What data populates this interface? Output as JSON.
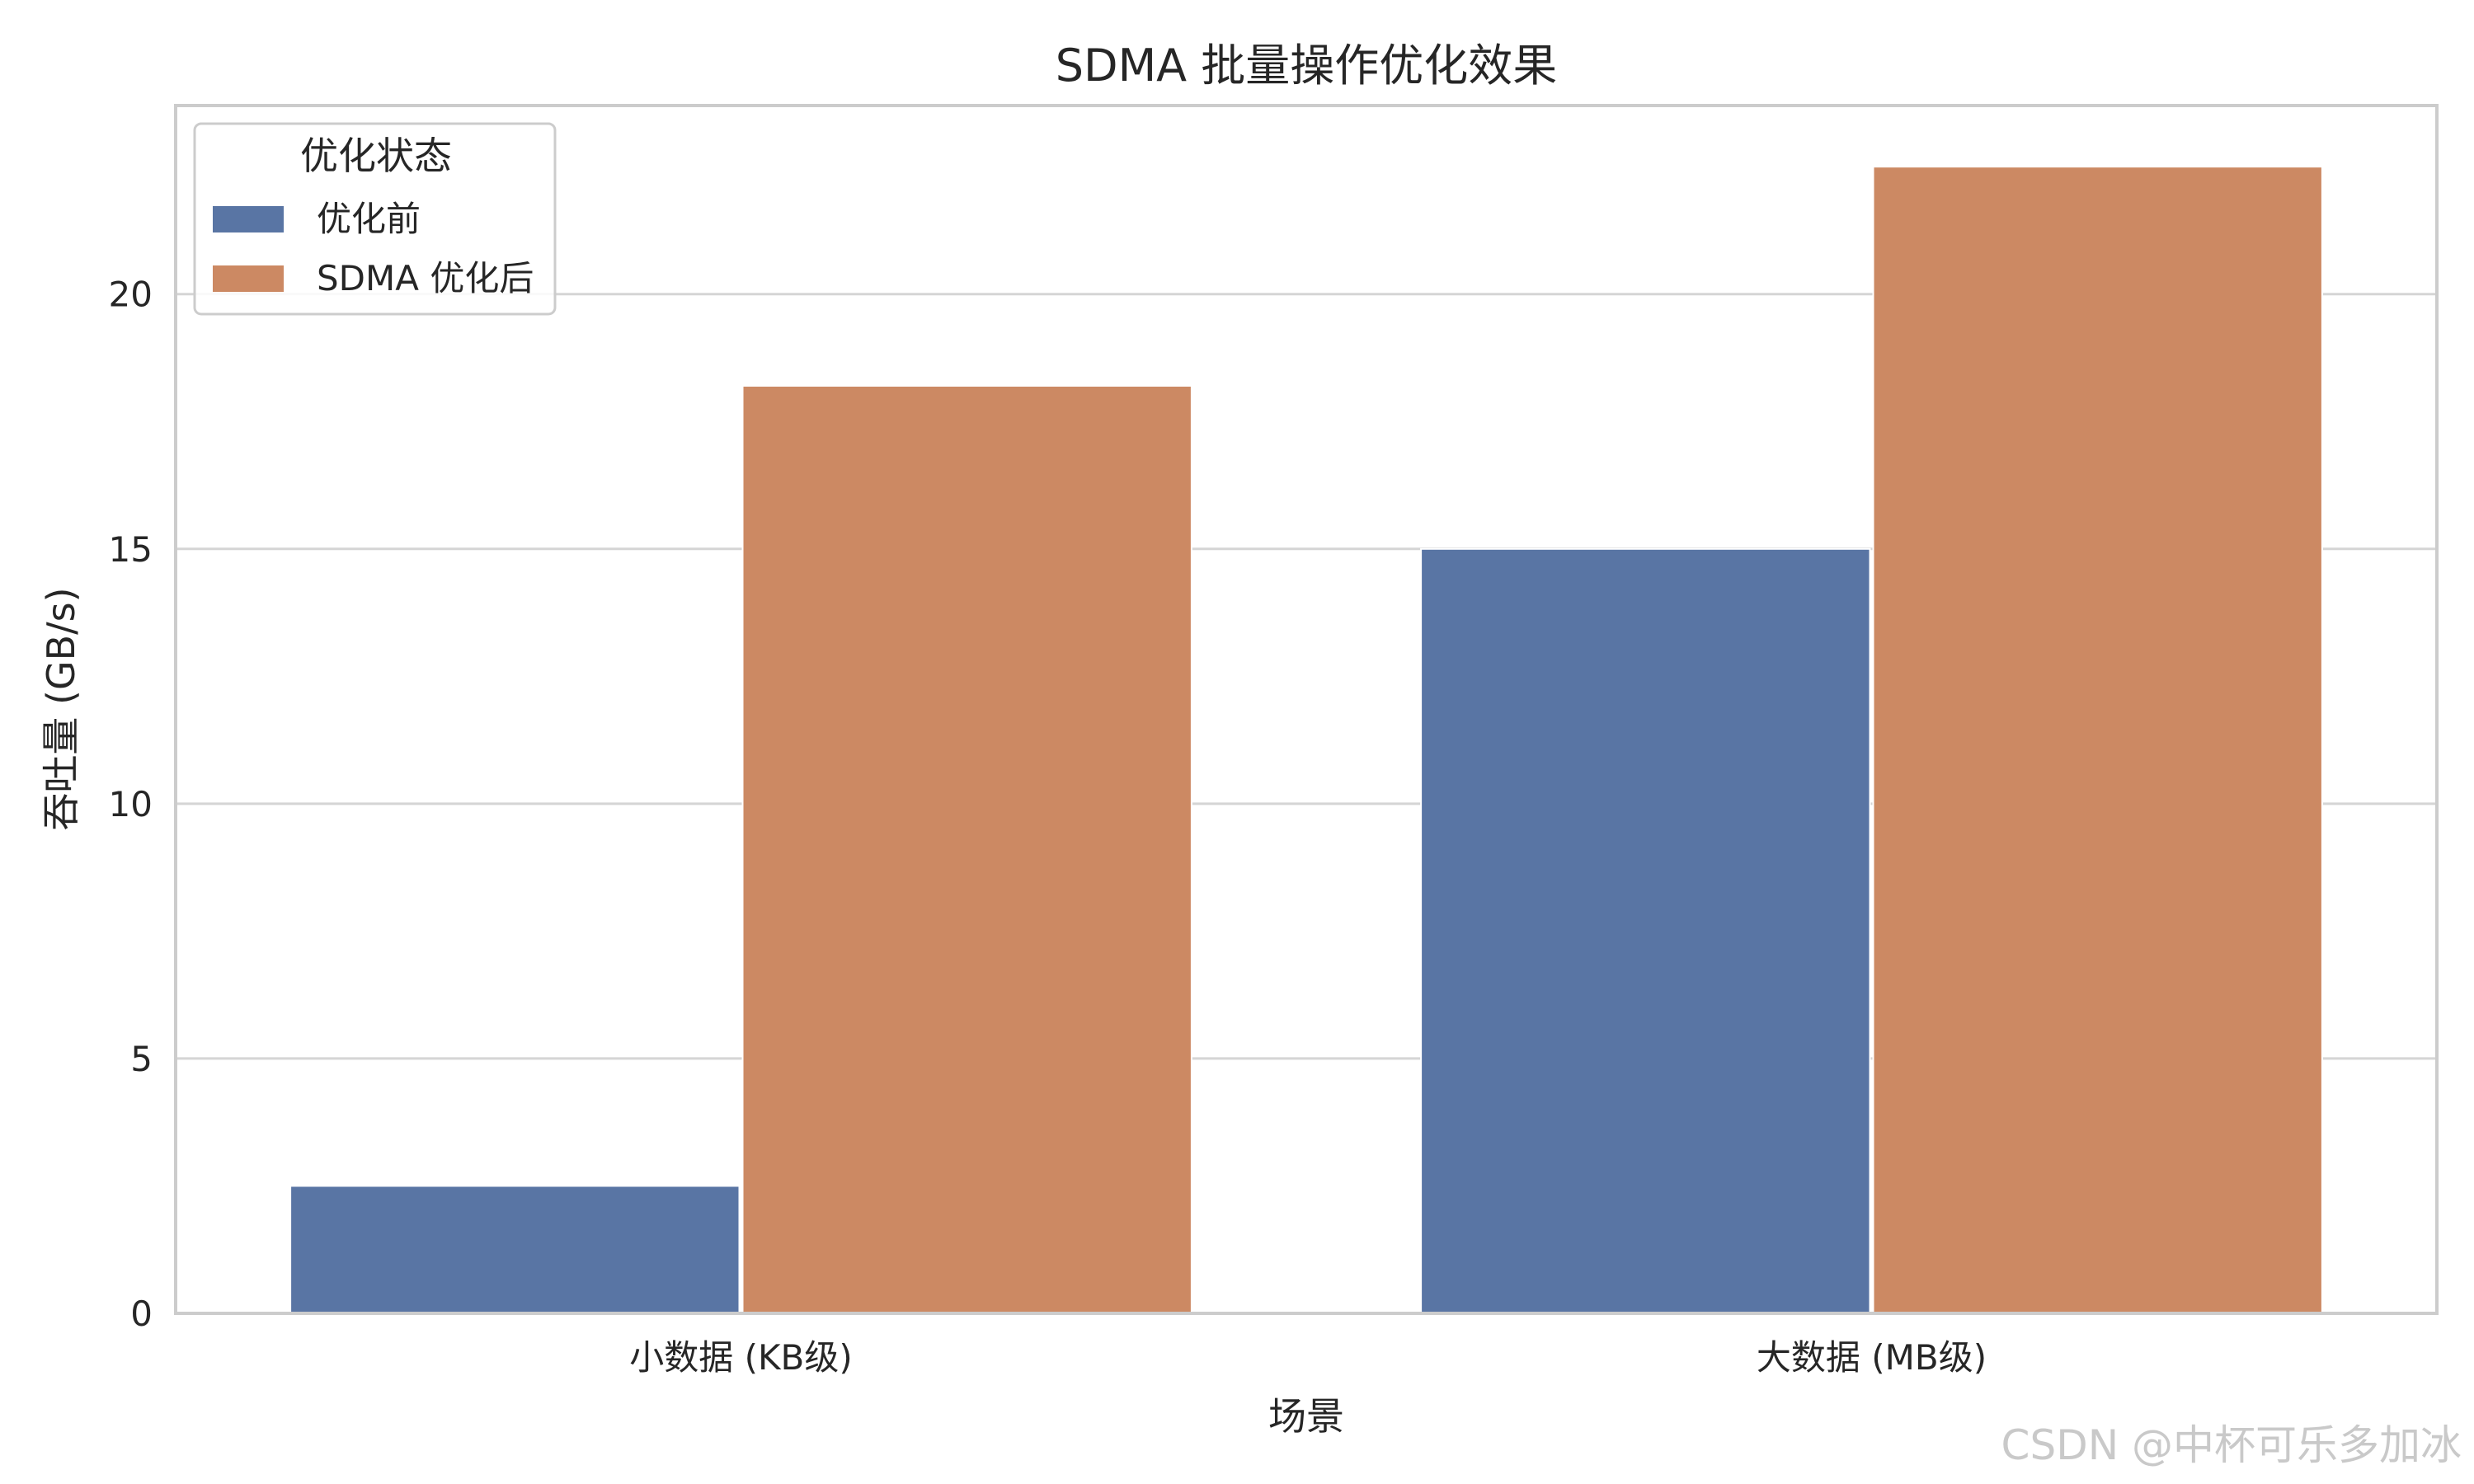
{
  "chart_data": {
    "type": "bar",
    "title": "SDMA 批量操作优化效果",
    "xlabel": "场景",
    "ylabel": "吞吐量 (GB/s)",
    "categories": [
      "小数据 (KB级)",
      "大数据 (MB级)"
    ],
    "series": [
      {
        "name": "优化前",
        "values": [
          2.5,
          15.0
        ],
        "color": "#5975a4"
      },
      {
        "name": "SDMA 优化后",
        "values": [
          18.2,
          22.5
        ],
        "color": "#cc8963"
      }
    ],
    "ylim": [
      0,
      23.7
    ],
    "yticks": [
      0,
      5,
      10,
      15,
      20
    ],
    "grid": true,
    "legend": {
      "title": "优化状态",
      "placement": "top-left"
    }
  },
  "watermark": "CSDN @中杯可乐多加冰",
  "colors": {
    "grid": "#d5d5d5",
    "frame": "#cccccc",
    "text": "#262626"
  }
}
